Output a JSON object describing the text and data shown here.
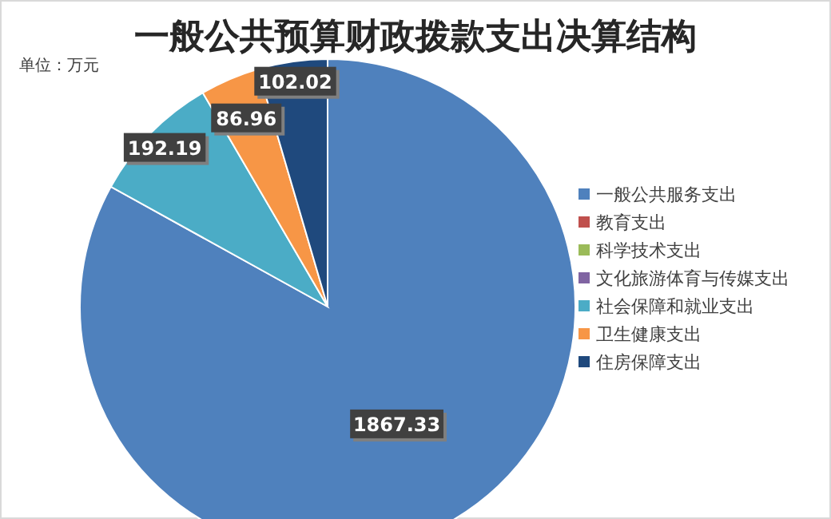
{
  "chart_data": {
    "type": "pie",
    "title": "一般公共预算财政拨款支出决算结构",
    "annotations": [
      "单位：万元"
    ],
    "categories": [
      "一般公共服务支出",
      "教育支出",
      "科学技术支出",
      "文化旅游体育与传媒支出",
      "社会保障和就业支出",
      "卫生健康支出",
      "住房保障支出"
    ],
    "values": [
      1867.33,
      0,
      0,
      0,
      192.19,
      86.96,
      102.02
    ],
    "colors": [
      "#4f81bd",
      "#c0504d",
      "#9bbb59",
      "#8064a2",
      "#4bacc6",
      "#f79646",
      "#1f497d"
    ],
    "value_labels": [
      "1867.33",
      null,
      null,
      null,
      "192.19",
      "86.96",
      "102.02"
    ],
    "legend": "right"
  }
}
